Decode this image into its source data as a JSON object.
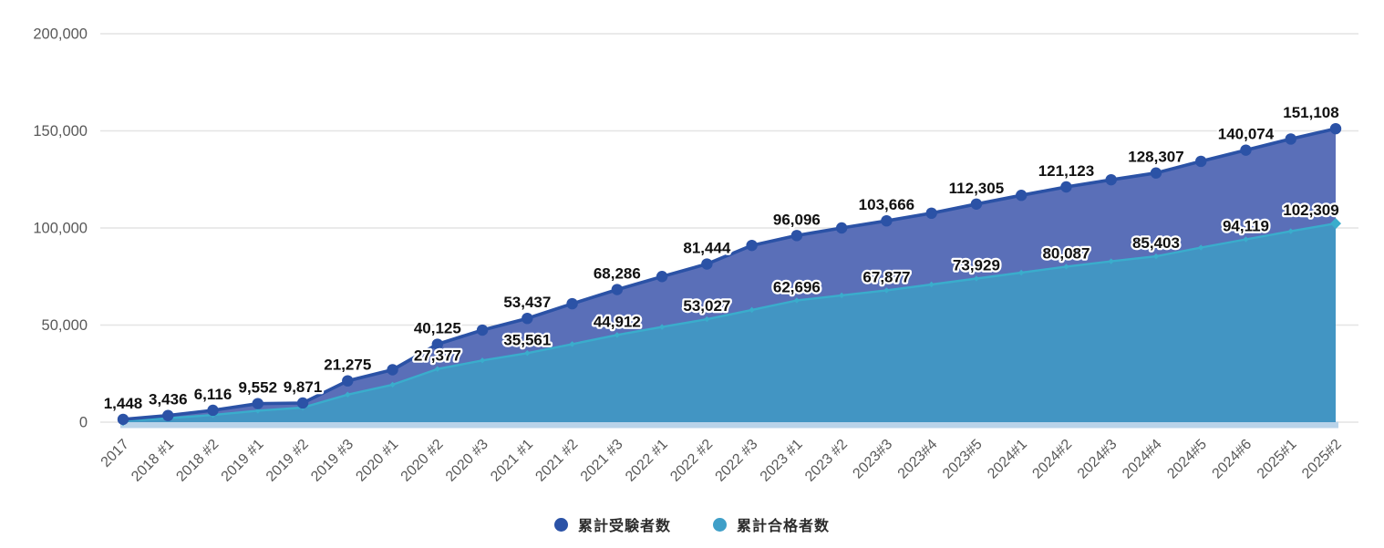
{
  "chart_data": {
    "type": "area",
    "title": "",
    "xlabel": "",
    "ylabel": "",
    "ylim": [
      0,
      200000
    ],
    "grid": true,
    "legend_position": "bottom",
    "x_tick_rotation": -45,
    "categories": [
      "2017",
      "2018 #1",
      "2018 #2",
      "2019 #1",
      "2019 #2",
      "2019 #3",
      "2020 #1",
      "2020 #2",
      "2020 #3",
      "2021 #1",
      "2021 #2",
      "2021 #3",
      "2022 #1",
      "2022 #2",
      "2022 #3",
      "2023 #1",
      "2023 #2",
      "2023#3",
      "2023#4",
      "2023#5",
      "2024#1",
      "2024#2",
      "2024#3",
      "2024#4",
      "2024#5",
      "2024#6",
      "2025#1",
      "2025#2"
    ],
    "yticks": [
      {
        "value": 0,
        "label": "0"
      },
      {
        "value": 50000,
        "label": "50,000"
      },
      {
        "value": 100000,
        "label": "100,000"
      },
      {
        "value": 150000,
        "label": "150,000"
      },
      {
        "value": 200000,
        "label": "200,000"
      }
    ],
    "series": [
      {
        "name": "累計受験者数",
        "key": "jukensha",
        "line_color": "#2b52a6",
        "fill_color": "#5a6fb8",
        "marker": "circle",
        "values": [
          1448,
          3436,
          6116,
          9552,
          9871,
          21275,
          27000,
          40125,
          47400,
          53437,
          61000,
          68286,
          75000,
          81444,
          91000,
          96096,
          100000,
          103666,
          107600,
          112305,
          116800,
          121123,
          124800,
          128307,
          134300,
          140074,
          145800,
          151108
        ],
        "estimated_indices": [
          6,
          8,
          10,
          12,
          14,
          16,
          18,
          20,
          22,
          24,
          26
        ],
        "labeled_points": {
          "0": "1,448",
          "1": "3,436",
          "2": "6,116",
          "3": "9,552",
          "4": "9,871",
          "5": "21,275",
          "7": "40,125",
          "9": "53,437",
          "11": "68,286",
          "13": "81,444",
          "15": "96,096",
          "17": "103,666",
          "19": "112,305",
          "21": "121,123",
          "23": "128,307",
          "25": "140,074",
          "27": "151,108"
        }
      },
      {
        "name": "累計合格者数",
        "key": "goukakusha",
        "line_color": "#3aadcc",
        "fill_color": "#4295c3",
        "marker": "diamond",
        "values": [
          800,
          2000,
          3700,
          5900,
          7500,
          14200,
          19300,
          27377,
          31800,
          35561,
          40200,
          44912,
          49000,
          53027,
          57800,
          62696,
          65300,
          67877,
          70900,
          73929,
          77000,
          80087,
          82800,
          85403,
          89900,
          94119,
          98300,
          102309
        ],
        "estimated_indices": [
          0,
          1,
          2,
          3,
          4,
          5,
          6,
          8,
          10,
          12,
          14,
          16,
          18,
          20,
          22,
          24,
          26
        ],
        "labeled_points": {
          "7": "27,377",
          "9": "35,561",
          "11": "44,912",
          "13": "53,027",
          "15": "62,696",
          "17": "67,877",
          "19": "73,929",
          "21": "80,087",
          "23": "85,403",
          "25": "94,119",
          "27": "102,309"
        }
      }
    ]
  },
  "legend": {
    "items": [
      {
        "label": "累計受験者数",
        "color": "#2b52a6"
      },
      {
        "label": "累計合格者数",
        "color": "#3f9fc8"
      }
    ]
  },
  "colors": {
    "background": "#ffffff",
    "gridline": "#e4e4e4",
    "axis_text": "#595959",
    "data_label_text": "#111111",
    "data_label_halo": "#ffffff",
    "baseline_strip": "#b9d3e9"
  }
}
